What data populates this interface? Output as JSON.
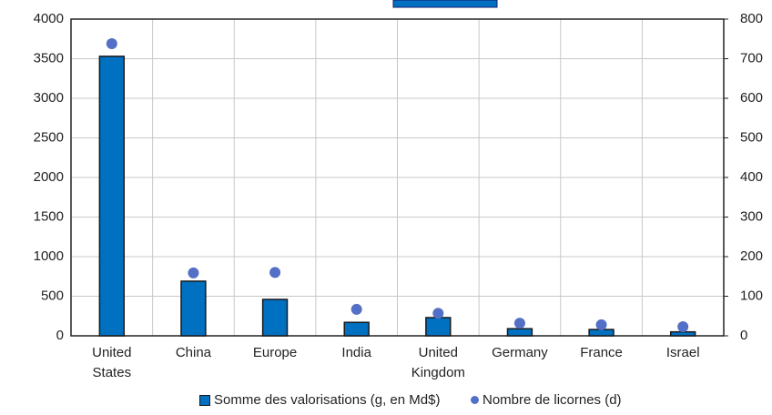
{
  "chart_data": {
    "type": "bar",
    "categories": [
      "United States",
      "China",
      "Europe",
      "India",
      "United Kingdom",
      "Germany",
      "France",
      "Israel"
    ],
    "series": [
      {
        "name": "Somme des valorisations (g, en Md$)",
        "color": "#0070c0",
        "type": "bar",
        "values": [
          3530,
          690,
          460,
          170,
          230,
          90,
          80,
          50
        ]
      },
      {
        "name": "Nombre de licornes (d)",
        "color": "#5470c6",
        "type": "scatter",
        "axis": "y2",
        "values": [
          738,
          159,
          160,
          67,
          57,
          32,
          28,
          23
        ]
      }
    ],
    "ylim": [
      0,
      4000
    ],
    "yticks": [
      0,
      500,
      1000,
      1500,
      2000,
      2500,
      3000,
      3500,
      4000
    ],
    "y2lim": [
      0,
      800
    ],
    "y2ticks": [
      0,
      100,
      200,
      300,
      400,
      500,
      600,
      700,
      800
    ],
    "grid": true,
    "legend": "bottom"
  }
}
